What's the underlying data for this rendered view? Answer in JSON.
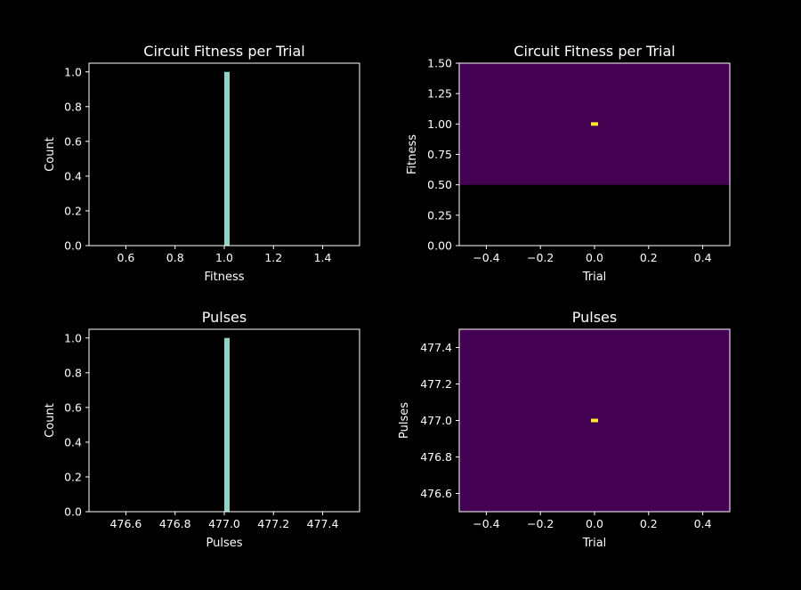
{
  "chart_data": [
    {
      "type": "bar",
      "panel": "top-left",
      "title": "Circuit Fitness per Trial",
      "xlabel": "Fitness",
      "ylabel": "Count",
      "xlim": [
        0.45,
        1.55
      ],
      "ylim": [
        0,
        1.05
      ],
      "xticks": [
        0.6,
        0.8,
        1.0,
        1.2,
        1.4
      ],
      "xtick_labels": [
        "0.6",
        "0.8",
        "1.0",
        "1.2",
        "1.4"
      ],
      "yticks": [
        0.0,
        0.2,
        0.4,
        0.6,
        0.8,
        1.0
      ],
      "ytick_labels": [
        "0.0",
        "0.2",
        "0.4",
        "0.6",
        "0.8",
        "1.0"
      ],
      "bars": [
        {
          "x0": 1.0,
          "x1": 1.02,
          "value": 1
        }
      ],
      "bar_color": "#8dd3c7",
      "grid": false
    },
    {
      "type": "heatmap",
      "panel": "top-right",
      "title": "Circuit Fitness per Trial",
      "xlabel": "Trial",
      "ylabel": "Fitness",
      "xlim": [
        -0.5,
        0.5
      ],
      "ylim": [
        0,
        1.5
      ],
      "xticks": [
        -0.4,
        -0.2,
        0.0,
        0.2,
        0.4
      ],
      "xtick_labels": [
        "−0.4",
        "−0.2",
        "0.0",
        "0.2",
        "0.4"
      ],
      "yticks": [
        0.0,
        0.25,
        0.5,
        0.75,
        1.0,
        1.25,
        1.5
      ],
      "ytick_labels": [
        "0.00",
        "0.25",
        "0.50",
        "0.75",
        "1.00",
        "1.25",
        "1.50"
      ],
      "fill_region": {
        "y0": 0.5,
        "y1": 1.5,
        "color": "#440154"
      },
      "points": [
        {
          "x": 0.0,
          "y": 1.0,
          "color": "#fde725"
        }
      ],
      "grid": false
    },
    {
      "type": "bar",
      "panel": "bottom-left",
      "title": "Pulses",
      "xlabel": "Pulses",
      "ylabel": "Count",
      "xlim": [
        476.45,
        477.55
      ],
      "ylim": [
        0,
        1.05
      ],
      "xticks": [
        476.6,
        476.8,
        477.0,
        477.2,
        477.4
      ],
      "xtick_labels": [
        "476.6",
        "476.8",
        "477.0",
        "477.2",
        "477.4"
      ],
      "yticks": [
        0.0,
        0.2,
        0.4,
        0.6,
        0.8,
        1.0
      ],
      "ytick_labels": [
        "0.0",
        "0.2",
        "0.4",
        "0.6",
        "0.8",
        "1.0"
      ],
      "bars": [
        {
          "x0": 477.0,
          "x1": 477.02,
          "value": 1
        }
      ],
      "bar_color": "#8dd3c7",
      "grid": false
    },
    {
      "type": "heatmap",
      "panel": "bottom-right",
      "title": "Pulses",
      "xlabel": "Trial",
      "ylabel": "Pulses",
      "xlim": [
        -0.5,
        0.5
      ],
      "ylim": [
        476.5,
        477.5
      ],
      "xticks": [
        -0.4,
        -0.2,
        0.0,
        0.2,
        0.4
      ],
      "xtick_labels": [
        "−0.4",
        "−0.2",
        "0.0",
        "0.2",
        "0.4"
      ],
      "yticks": [
        476.6,
        476.8,
        477.0,
        477.2,
        477.4
      ],
      "ytick_labels": [
        "476.6",
        "476.8",
        "477.0",
        "477.2",
        "477.4"
      ],
      "fill_region": {
        "y0": 476.5,
        "y1": 477.5,
        "color": "#440154"
      },
      "points": [
        {
          "x": 0.0,
          "y": 477.0,
          "color": "#fde725"
        }
      ],
      "grid": false
    }
  ]
}
